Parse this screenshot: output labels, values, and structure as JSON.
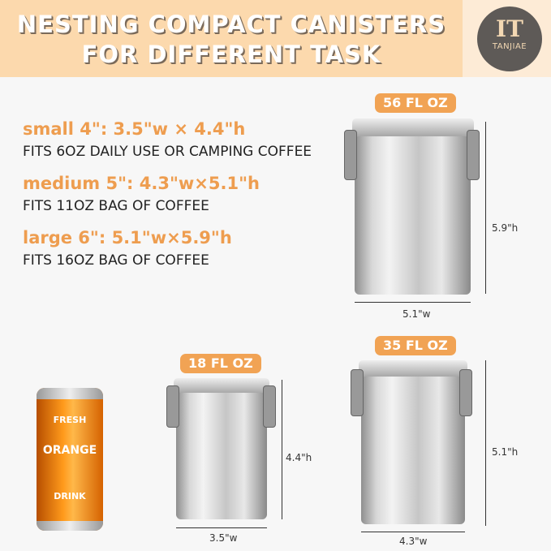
{
  "header": {
    "title_line1": "NESTING COMPACT CANISTERS",
    "title_line2": "FOR DIFFERENT TASK"
  },
  "brand": {
    "logo_mark": "IT",
    "name": "TANJIAE"
  },
  "specs": [
    {
      "heading": "small 4\": 3.5\"w × 4.4\"h",
      "description": "FITS 6OZ DAILY USE OR CAMPING COFFEE"
    },
    {
      "heading": "medium 5\": 4.3\"w×5.1\"h",
      "description": "FITS 11OZ BAG OF COFFEE"
    },
    {
      "heading": "large 6\": 5.1\"w×5.9\"h",
      "description": "FITS 16OZ BAG OF COFFEE"
    }
  ],
  "canisters": {
    "large": {
      "capacity": "56 FL OZ",
      "width": "5.1\"w",
      "height": "5.9\"h"
    },
    "small": {
      "capacity": "18 FL OZ",
      "width": "3.5\"w",
      "height": "4.4\"h"
    },
    "medium": {
      "capacity": "35 FL OZ",
      "width": "4.3\"w",
      "height": "5.1\"h"
    }
  },
  "soda_can": {
    "line1": "FRESH",
    "line2": "ORANGE",
    "line3": "DRINK"
  },
  "colors": {
    "accent": "#ee9d4f",
    "banner": "#fcd9ad",
    "badge": "#f1a354"
  }
}
